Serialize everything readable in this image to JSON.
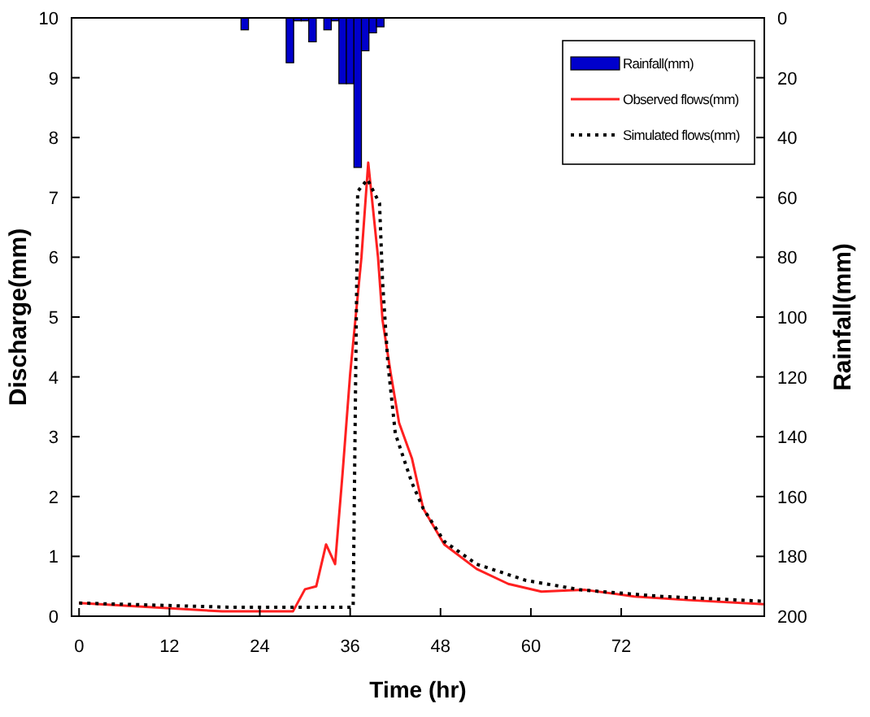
{
  "chart_data": {
    "type": "line",
    "xlabel": "Time (hr)",
    "ylabel": "Discharge(mm)",
    "y2label": "Rainfall(mm)",
    "xlim": [
      -1,
      91
    ],
    "xticks": [
      0,
      12,
      24,
      36,
      48,
      60,
      72
    ],
    "ylim": [
      0,
      10
    ],
    "yticks": [
      0,
      1,
      2,
      3,
      4,
      5,
      6,
      7,
      8,
      9,
      10
    ],
    "y2lim": [
      200,
      0
    ],
    "y2ticks": [
      0,
      20,
      40,
      60,
      80,
      100,
      120,
      140,
      160,
      180,
      200
    ],
    "legend": "top right",
    "marker": "none",
    "grid": false,
    "series": [
      {
        "name": "Rainfall(mm)",
        "type": "bar",
        "axis": "y2",
        "color": "#0000cc",
        "x": [
          22,
          28,
          29,
          30,
          31,
          33,
          34,
          35,
          36,
          37,
          38,
          39,
          40
        ],
        "values": [
          4,
          15,
          1,
          1,
          8,
          4,
          1,
          22,
          22,
          50,
          11,
          5,
          3
        ]
      },
      {
        "name": "Observed flows(mm)",
        "color": "#ff2020",
        "line_style": "solid",
        "x": [
          0,
          19,
          28.4,
          30,
          31.5,
          32.8,
          34,
          35,
          36,
          37.5,
          38.4,
          39.7,
          40.3,
          41.4,
          42.5,
          44.2,
          45.7,
          48.5,
          52.8,
          57,
          61.4,
          65,
          67.2,
          73.7,
          80.8,
          91
        ],
        "values": [
          0.22,
          0.08,
          0.08,
          0.45,
          0.5,
          1.2,
          0.87,
          2.4,
          4.05,
          6.0,
          7.58,
          6.0,
          4.95,
          4.05,
          3.23,
          2.64,
          1.8,
          1.2,
          0.79,
          0.54,
          0.41,
          0.43,
          0.44,
          0.33,
          0.27,
          0.2
        ]
      },
      {
        "name": "Simulated flows(mm)",
        "color": "#000000",
        "line_style": "dotted",
        "x": [
          0,
          20,
          36.4,
          37,
          38.3,
          39.9,
          40.3,
          41,
          42,
          44.2,
          45.7,
          48.5,
          52.8,
          59.3,
          66.6,
          77.4,
          91
        ],
        "values": [
          0.22,
          0.15,
          0.15,
          7.1,
          7.3,
          6.9,
          5.6,
          4.24,
          3.05,
          2.23,
          1.8,
          1.25,
          0.87,
          0.6,
          0.44,
          0.33,
          0.25
        ]
      }
    ]
  }
}
